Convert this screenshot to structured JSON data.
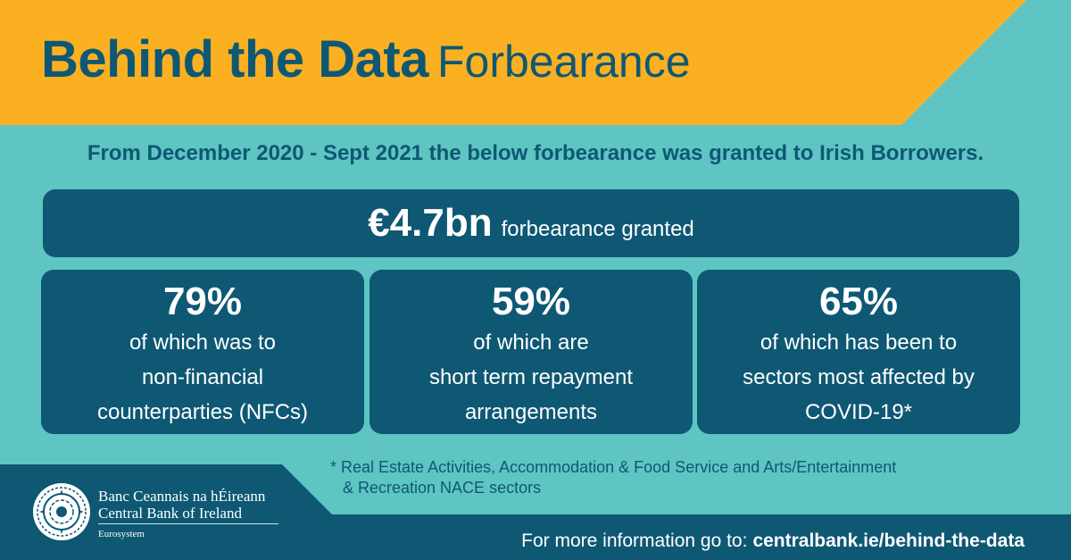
{
  "header": {
    "title_bold": "Behind the Data",
    "title_light": "Forbearance"
  },
  "intro": "From December 2020 - Sept 2021 the below forbearance was granted to Irish Borrowers.",
  "total": {
    "value": "€4.7bn",
    "label": "forbearance granted"
  },
  "stats": [
    {
      "value": "79%",
      "description": "of which was to\nnon-financial\ncounterparties (NFCs)"
    },
    {
      "value": "59%",
      "description": "of which are\nshort term repayment\narrangements"
    },
    {
      "value": "65%",
      "description": "of which has been to\nsectors most affected by\nCOVID-19*"
    }
  ],
  "footnote": {
    "line1": "* Real Estate Activities, Accommodation & Food Service and Arts/Entertainment",
    "line2": "& Recreation NACE sectors"
  },
  "logo": {
    "icon": "central-bank-seal-icon",
    "name_irish": "Banc Ceannais na hÉireann",
    "name_english": "Central Bank of Ireland",
    "subtitle": "Eurosystem"
  },
  "footer": {
    "text": "For more information go to:",
    "link": "centralbank.ie/behind-the-data"
  },
  "colors": {
    "yellow": "#fbb022",
    "teal": "#5ec5c2",
    "navy": "#0e5874",
    "white": "#ffffff"
  }
}
